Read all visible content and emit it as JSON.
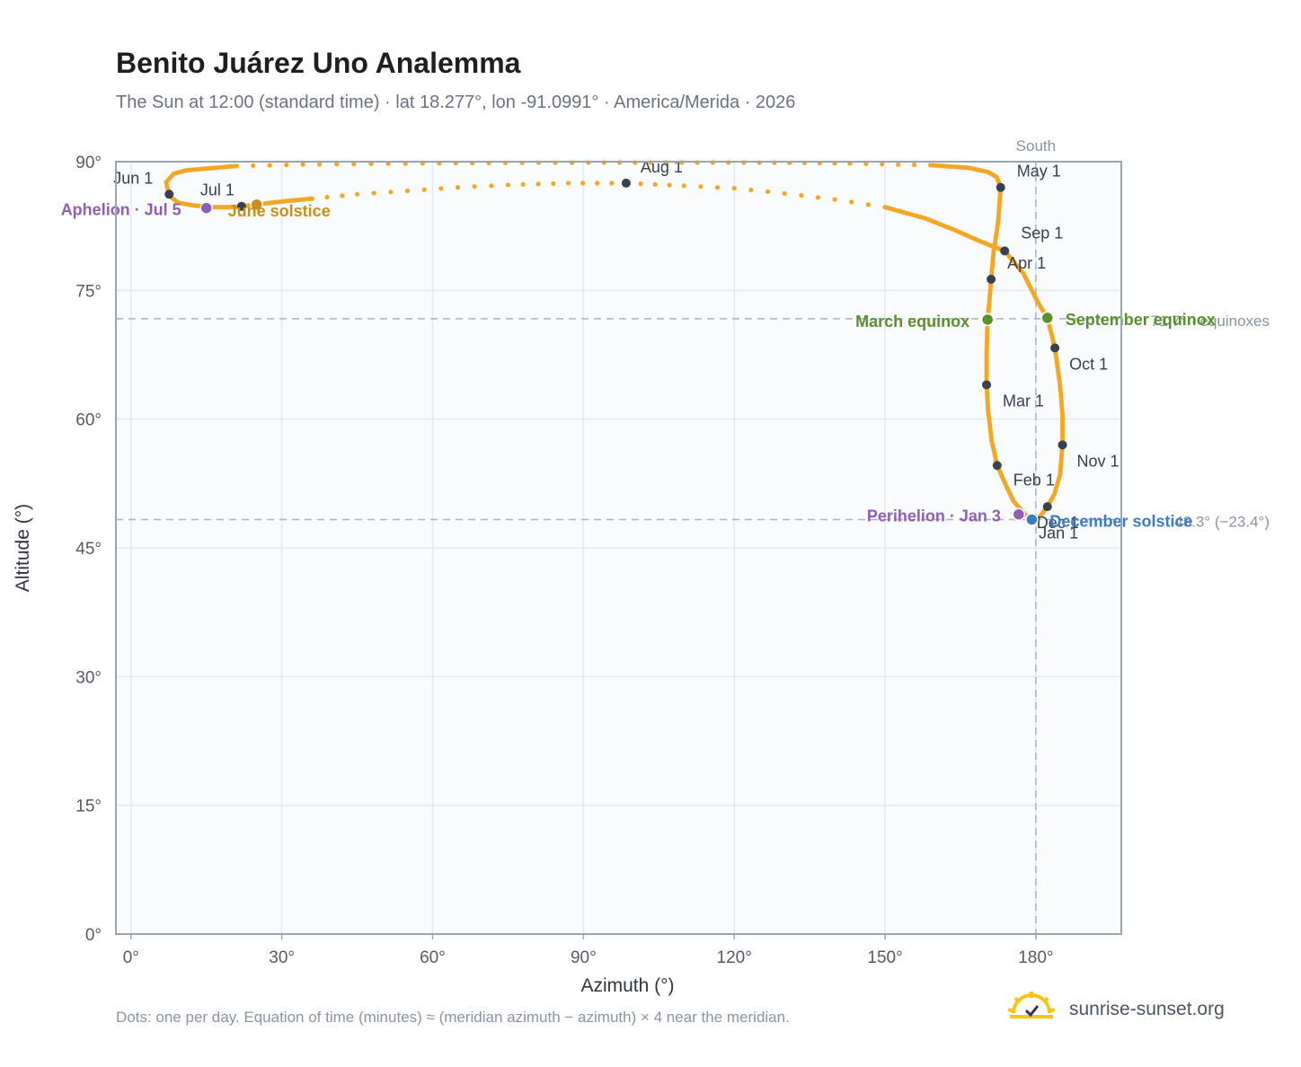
{
  "header": {
    "title": "Benito Juárez Uno Analemma",
    "subtitle": "The Sun at 12:00 (standard time) · lat 18.277°, lon -91.0991° · America/Merida · 2026"
  },
  "footnote": "Dots: one per day. Equation of time (minutes) ≈ (meridian azimuth − azimuth) × 4 near the meridian.",
  "brand": {
    "name": "sunrise-sunset.org"
  },
  "colors": {
    "analemma": "#f5a623",
    "month_marker": "#374151",
    "equinox": "#5b8f2e",
    "solstice_june": "#c8901a",
    "solstice_december": "#3d7cc2",
    "apsis": "#8e5fb5",
    "plot_background": "#f9fbfd",
    "grid": "#e5e9ef",
    "reference_line": "#aab3bf"
  },
  "chart_data": {
    "type": "scatter",
    "xlabel": "Azimuth (°)",
    "ylabel": "Altitude (°)",
    "xlim": [
      -3,
      197
    ],
    "ylim": [
      0,
      90
    ],
    "x_ticks": [
      {
        "value": 0,
        "label": "0°"
      },
      {
        "value": 30,
        "label": "30°"
      },
      {
        "value": 60,
        "label": "60°"
      },
      {
        "value": 90,
        "label": "90°"
      },
      {
        "value": 120,
        "label": "120°"
      },
      {
        "value": 150,
        "label": "150°"
      },
      {
        "value": 180,
        "label": "180°"
      }
    ],
    "y_ticks": [
      {
        "value": 0,
        "label": "0°"
      },
      {
        "value": 15,
        "label": "15°"
      },
      {
        "value": 30,
        "label": "30°"
      },
      {
        "value": 45,
        "label": "45°"
      },
      {
        "value": 60,
        "label": "60°"
      },
      {
        "value": 75,
        "label": "75°"
      },
      {
        "value": 90,
        "label": "90°"
      }
    ],
    "grid": true,
    "meridian": {
      "azimuth": 180,
      "label": "South"
    },
    "reference_lines": [
      {
        "altitude": 71.7,
        "label": "71.7° · equinoxes"
      },
      {
        "altitude": 48.3,
        "label": "48.3° (−23.4°)"
      }
    ],
    "path": [
      [
        179.5,
        48.3
      ],
      [
        178.0,
        48.8
      ],
      [
        175.5,
        50.5
      ],
      [
        173.5,
        53.0
      ],
      [
        172.3,
        54.6
      ],
      [
        171.2,
        57.5
      ],
      [
        170.5,
        61.0
      ],
      [
        170.2,
        64.0
      ],
      [
        170.2,
        67.5
      ],
      [
        170.4,
        71.6
      ],
      [
        170.8,
        74.0
      ],
      [
        171.1,
        76.3
      ],
      [
        171.6,
        79.5
      ],
      [
        172.5,
        83.0
      ],
      [
        173.0,
        87.0
      ],
      [
        172.2,
        88.2
      ],
      [
        170.5,
        88.8
      ],
      [
        166.5,
        89.3
      ],
      [
        159.0,
        89.6
      ],
      [
        143.0,
        89.8
      ],
      [
        125.0,
        89.9
      ],
      [
        91.0,
        89.9
      ],
      [
        58.0,
        89.8
      ],
      [
        37.5,
        89.7
      ],
      [
        21.0,
        89.5
      ],
      [
        15.0,
        89.2
      ],
      [
        11.0,
        89.0
      ],
      [
        8.5,
        88.6
      ],
      [
        7.0,
        87.6
      ],
      [
        7.6,
        86.0
      ],
      [
        9.5,
        85.2
      ],
      [
        12.5,
        84.9
      ],
      [
        16.0,
        84.7
      ],
      [
        19.5,
        84.7
      ],
      [
        22.0,
        84.8
      ],
      [
        25.0,
        85.0
      ],
      [
        29.0,
        85.3
      ],
      [
        36.0,
        85.7
      ],
      [
        45.0,
        86.2
      ],
      [
        55.0,
        86.6
      ],
      [
        65.0,
        87.0
      ],
      [
        75.0,
        87.3
      ],
      [
        87.0,
        87.5
      ],
      [
        98.5,
        87.5
      ],
      [
        110.0,
        87.2
      ],
      [
        120.0,
        86.9
      ],
      [
        130.0,
        86.3
      ],
      [
        140.0,
        85.6
      ],
      [
        150.0,
        84.7
      ],
      [
        158.0,
        83.4
      ],
      [
        164.0,
        82.0
      ],
      [
        169.0,
        80.7
      ],
      [
        173.8,
        79.6
      ],
      [
        177.5,
        77.0
      ],
      [
        180.5,
        73.5
      ],
      [
        182.3,
        71.8
      ],
      [
        183.8,
        68.3
      ],
      [
        184.8,
        64.0
      ],
      [
        185.3,
        60.5
      ],
      [
        185.3,
        57.0
      ],
      [
        184.8,
        53.5
      ],
      [
        183.7,
        51.3
      ],
      [
        182.3,
        49.8
      ],
      [
        181.0,
        48.8
      ],
      [
        180.2,
        48.4
      ],
      [
        179.5,
        48.3
      ]
    ],
    "month_markers": [
      {
        "label": "Jan 1",
        "azimuth": 179.5,
        "altitude": 48.4
      },
      {
        "label": "Feb 1",
        "azimuth": 172.3,
        "altitude": 54.6
      },
      {
        "label": "Mar 1",
        "azimuth": 170.2,
        "altitude": 64.0
      },
      {
        "label": "Apr 1",
        "azimuth": 171.1,
        "altitude": 76.3
      },
      {
        "label": "May 1",
        "azimuth": 173.0,
        "altitude": 87.0
      },
      {
        "label": "Jun 1",
        "azimuth": 7.6,
        "altitude": 86.2
      },
      {
        "label": "Jul 1",
        "azimuth": 22.0,
        "altitude": 84.8
      },
      {
        "label": "Aug 1",
        "azimuth": 98.5,
        "altitude": 87.5
      },
      {
        "label": "Sep 1",
        "azimuth": 173.8,
        "altitude": 79.6
      },
      {
        "label": "Oct 1",
        "azimuth": 183.8,
        "altitude": 68.3
      },
      {
        "label": "Nov 1",
        "azimuth": 185.3,
        "altitude": 57.0
      },
      {
        "label": "Dec 1",
        "azimuth": 182.3,
        "altitude": 49.8
      }
    ],
    "events": [
      {
        "label": "March equinox",
        "azimuth": 170.4,
        "altitude": 71.6,
        "kind": "equinox"
      },
      {
        "label": "September equinox",
        "azimuth": 182.3,
        "altitude": 71.8,
        "kind": "equinox"
      },
      {
        "label": "June solstice",
        "azimuth": 25.0,
        "altitude": 85.0,
        "kind": "solstice_june"
      },
      {
        "label": "December solstice",
        "azimuth": 179.2,
        "altitude": 48.3,
        "kind": "solstice_december"
      },
      {
        "label": "Perihelion · Jan 3",
        "azimuth": 176.6,
        "altitude": 48.9,
        "kind": "apsis"
      },
      {
        "label": "Aphelion · Jul 5",
        "azimuth": 15.0,
        "altitude": 84.6,
        "kind": "apsis"
      }
    ]
  }
}
